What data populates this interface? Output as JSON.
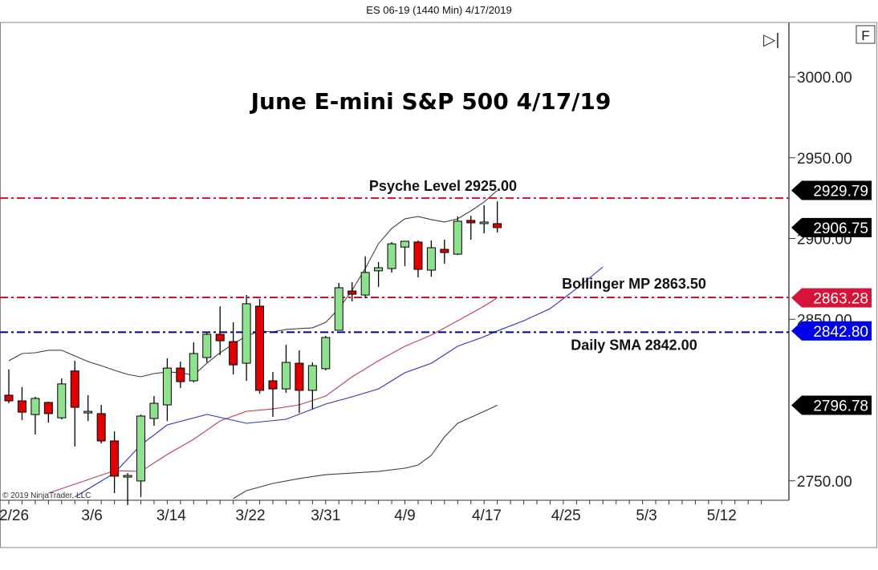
{
  "window_title": "ES 06-19 (1440 Min)  4/17/2019",
  "controls": {
    "scroll_end_icon": "play-to-end-icon",
    "scroll_end_glyph": "▷|",
    "f_button": "F"
  },
  "copyright": "© 2019 NinjaTrader, LLC",
  "chart_data": {
    "type": "candlestick",
    "title": "June E-mini S&P 500 4/17/19",
    "ylim": [
      2738,
      3035
    ],
    "y_ticks": [
      "3000.00",
      "2950.00",
      "2900.00",
      "2850.00",
      "2750.00"
    ],
    "y_tick_values": [
      3000,
      2950,
      2900,
      2850,
      2750
    ],
    "x_tick_labels": [
      "2/26",
      "3/6",
      "3/14",
      "3/22",
      "3/31",
      "4/9",
      "4/17",
      "4/25",
      "5/3",
      "5/12"
    ],
    "grid": false,
    "colors": {
      "up": "#8fe08f",
      "down": "#e00000",
      "upper_band": "#404040",
      "middle_band": "#c04050",
      "sma": "#3030c0",
      "psyche_line": "#d01030",
      "sma_line": "#000090"
    },
    "candles": [
      [
        2803,
        2819,
        2798,
        2799.5
      ],
      [
        2799.5,
        2808,
        2787.6,
        2792.5
      ],
      [
        2791,
        2802,
        2778.7,
        2801
      ],
      [
        2798.5,
        2799,
        2786,
        2791.6
      ],
      [
        2789,
        2813.4,
        2788,
        2810
      ],
      [
        2818,
        2824.3,
        2771.2,
        2795.5
      ],
      [
        2793,
        2803,
        2787,
        2793
      ],
      [
        2791.6,
        2797,
        2773.2,
        2774.7
      ],
      [
        2774.7,
        2780.6,
        2742.4,
        2752.9
      ],
      [
        2753.3,
        2754.8,
        2735,
        2753.3
      ],
      [
        2749.9,
        2791,
        2740,
        2790.1
      ],
      [
        2788.6,
        2802.5,
        2784.1,
        2798
      ],
      [
        2797,
        2825.8,
        2787,
        2819.8
      ],
      [
        2819.8,
        2823.8,
        2807.4,
        2811.4
      ],
      [
        2811.9,
        2835.7,
        2810.9,
        2828.8
      ],
      [
        2826.3,
        2842.2,
        2823.3,
        2840.7
      ],
      [
        2840.7,
        2858,
        2827.8,
        2836.7
      ],
      [
        2836.2,
        2848.1,
        2815.9,
        2821.8
      ],
      [
        2822.8,
        2865,
        2811.9,
        2859.6
      ],
      [
        2858.1,
        2862.5,
        2804,
        2806
      ],
      [
        2811.9,
        2817.4,
        2789.6,
        2806.9
      ],
      [
        2806.9,
        2834.2,
        2804.5,
        2823.3
      ],
      [
        2822.8,
        2830.8,
        2792,
        2806
      ],
      [
        2806,
        2823.3,
        2794.5,
        2821.3
      ],
      [
        2819.4,
        2839.7,
        2818.4,
        2838.7
      ],
      [
        2843.2,
        2872.5,
        2843.2,
        2869.5
      ],
      [
        2867.5,
        2873,
        2861,
        2865.5
      ],
      [
        2865,
        2889,
        2863,
        2879
      ],
      [
        2880,
        2885.4,
        2870,
        2881.9
      ],
      [
        2881.4,
        2897.8,
        2878.9,
        2896.7
      ],
      [
        2894.7,
        2898.3,
        2882.9,
        2898.3
      ],
      [
        2897.8,
        2898.8,
        2875.9,
        2880.9
      ],
      [
        2880.4,
        2898.8,
        2876.4,
        2894.3
      ],
      [
        2893.3,
        2899.3,
        2884.4,
        2891.3
      ],
      [
        2890.3,
        2913.6,
        2889.8,
        2910.7
      ],
      [
        2911.2,
        2914.1,
        2899.3,
        2909.7
      ],
      [
        2909.2,
        2920.6,
        2903.2,
        2910.2
      ],
      [
        2909.2,
        2923,
        2903.7,
        2906.75
      ]
    ],
    "candle_fields": [
      "open",
      "high",
      "low",
      "close"
    ],
    "upper_band": [
      2824.3,
      2828.8,
      2829.3,
      2830.8,
      2830.8,
      2827.3,
      2823.8,
      2821.3,
      2818.4,
      2815.9,
      2814.4,
      2816.4,
      2817.4,
      2816.9,
      2815.4,
      2822.8,
      2829.3,
      2834.7,
      2839.7,
      2842.7,
      2842.2,
      2843.7,
      2844.2,
      2844.7,
      2848.1,
      2856.6,
      2868,
      2881.4,
      2896.8,
      2906.2,
      2912.2,
      2913.6,
      2911.7,
      2910.2,
      2912.2,
      2917.1,
      2922.6,
      2929.79
    ],
    "middle_band": [
      [
        3,
        2742.4
      ],
      [
        8,
        2756.3
      ],
      [
        10,
        2755.8
      ],
      [
        12,
        2766.3
      ],
      [
        14,
        2775.7
      ],
      [
        16,
        2787.1
      ],
      [
        18,
        2793
      ],
      [
        20,
        2794.5
      ],
      [
        22,
        2797
      ],
      [
        24,
        2802.5
      ],
      [
        26,
        2814.4
      ],
      [
        28,
        2824.3
      ],
      [
        30,
        2833.3
      ],
      [
        32,
        2840.2
      ],
      [
        34,
        2849.1
      ],
      [
        36,
        2858.1
      ],
      [
        37,
        2863.28
      ]
    ],
    "lower_band": [
      [
        17,
        2739
      ],
      [
        18,
        2743.9
      ],
      [
        20,
        2748.4
      ],
      [
        22,
        2751.4
      ],
      [
        24,
        2753.8
      ],
      [
        26,
        2754.8
      ],
      [
        28,
        2755.8
      ],
      [
        30,
        2757.8
      ],
      [
        31,
        2759.8
      ],
      [
        32,
        2765.8
      ],
      [
        33,
        2777.2
      ],
      [
        34,
        2785.6
      ],
      [
        36,
        2793
      ],
      [
        37,
        2796.78
      ]
    ],
    "sma": [
      [
        5,
        2740
      ],
      [
        8,
        2754.8
      ],
      [
        10,
        2772.2
      ],
      [
        12,
        2784.6
      ],
      [
        15,
        2791.1
      ],
      [
        18,
        2785.6
      ],
      [
        21,
        2788.1
      ],
      [
        24,
        2797.5
      ],
      [
        26,
        2802
      ],
      [
        28,
        2806.9
      ],
      [
        30,
        2816.9
      ],
      [
        32,
        2822.8
      ],
      [
        34,
        2833.3
      ],
      [
        36,
        2839.2
      ],
      [
        37,
        2842.8
      ],
      [
        39,
        2849.1
      ],
      [
        41,
        2856.6
      ],
      [
        43,
        2869
      ],
      [
        45,
        2882.4
      ]
    ],
    "levels": [
      {
        "label": "Psyche Level 2925.00",
        "value": 2925.0,
        "color": "#d01030"
      },
      {
        "label": "Bollinger MP 2863.50",
        "value": 2863.5,
        "color": "#d01030"
      },
      {
        "label": "Daily SMA 2842.00",
        "value": 2842.0,
        "color": "#000090"
      }
    ],
    "price_tags": [
      {
        "text": "2929.79",
        "value": 2929.79,
        "color": "#000000"
      },
      {
        "text": "2906.75",
        "value": 2906.75,
        "color": "#000000"
      },
      {
        "text": "2863.28",
        "value": 2863.28,
        "color": "#d8133a"
      },
      {
        "text": "2842.80",
        "value": 2842.8,
        "color": "#0000e8"
      },
      {
        "text": "2796.78",
        "value": 2796.78,
        "color": "#000000"
      }
    ]
  }
}
